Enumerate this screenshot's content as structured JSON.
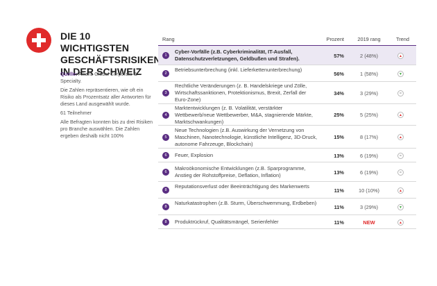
{
  "title": "DIE 10 WICHTIGSTEN GESCHÄFTSRISIKEN IN DER SCHWEIZ",
  "notes": {
    "source_label": "Quelle:",
    "source_text": "Allianz Global Corporate & Specialty.",
    "paragraph1": "Die Zahlen repräsentieren, wie oft ein Risiko als Prozentsatz aller Antworten für dieses Land ausgewählt wurde.",
    "participants": "61 Teilnehmer",
    "paragraph2": "Alle Befragten konnten bis zu drei Risiken pro Branche auswählen. Die Zahlen ergeben deshalb nicht 100%"
  },
  "headers": {
    "rank": "Rang",
    "percent": "Prozent",
    "prev": "2019 rang",
    "trend": "Trend"
  },
  "colors": {
    "accent": "#5a2d82",
    "highlight": "#ece8f3",
    "flag_red": "#e02a2a",
    "trend_up": "#e02a2a",
    "trend_down": "#3ea63e",
    "trend_same": "#8a8a8a",
    "new": "#e02a2a"
  },
  "chart_data": {
    "type": "table",
    "columns": [
      "Rang",
      "Prozent",
      "2019 rang",
      "Trend"
    ],
    "rows": [
      {
        "rank": "1",
        "label": "Cyber-Vorfälle (z.B. Cyberkriminalität, IT-Ausfall, Datenschutzverletzungen, Geldbußen und Strafen).",
        "percent": "57%",
        "prev": "2 (48%)",
        "trend": "up",
        "highlight": true
      },
      {
        "rank": "2",
        "label": "Betriebsunterbrechung (inkl. Lieferkettenunterbrechung)",
        "percent": "56%",
        "prev": "1 (58%)",
        "trend": "down",
        "highlight": false
      },
      {
        "rank": "3",
        "label": "Rechtliche Veränderungen (z. B. Handelskriege und Zölle, Wirtschaftssanktionen, Protektionismus, Brexit, Zerfall der Euro-Zone)",
        "percent": "34%",
        "prev": "3 (29%)",
        "trend": "same",
        "highlight": false
      },
      {
        "rank": "4",
        "label": "Marktentwicklungen (z. B. Volatilität, verstärkter Wettbewerb/neue Wettbewerber, M&A, stagnierende Märkte, Marktschwankungen)",
        "percent": "25%",
        "prev": "5 (25%)",
        "trend": "up",
        "highlight": false
      },
      {
        "rank": "5",
        "label": "Neue Technologien (z.B. Auswirkung der Vernetzung von Maschinen, Nanotechnologie, künstliche Intelligenz, 3D-Druck, autonome Fahrzeuge, Blockchain)",
        "percent": "15%",
        "prev": "8 (17%)",
        "trend": "up",
        "highlight": false
      },
      {
        "rank": "6",
        "label": "Feuer, Explosion",
        "percent": "13%",
        "prev": "6 (19%)",
        "trend": "same",
        "highlight": false
      },
      {
        "rank": "6",
        "label": "Makroökonomische Entwicklungen (z.B. Sparprogramme, Anstieg der Rohstoffpreise, Deflation, Inflation)",
        "percent": "13%",
        "prev": "6 (19%)",
        "trend": "same",
        "highlight": false
      },
      {
        "rank": "8",
        "label": "Reputationsverlust oder Beeinträchtigung des Markenwerts",
        "percent": "11%",
        "prev": "10 (10%)",
        "trend": "up",
        "highlight": false
      },
      {
        "rank": "8",
        "label": "Naturkatastrophen (z.B. Sturm, Überschwemmung, Erdbeben)",
        "percent": "11%",
        "prev": "3 (29%)",
        "trend": "down",
        "highlight": false
      },
      {
        "rank": "8",
        "label": "Produktrückruf, Qualitätsmängel, Serienfehler",
        "percent": "11%",
        "prev": "NEW",
        "trend": "up",
        "highlight": false
      }
    ]
  }
}
